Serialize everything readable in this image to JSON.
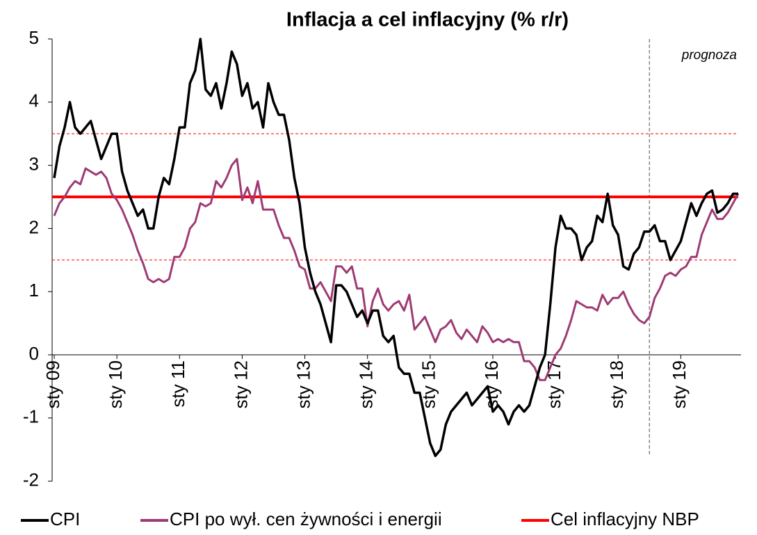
{
  "chart_data": {
    "type": "line",
    "title": "Inflacja a cel inflacyjny (% r/r)",
    "categories": [
      "sty 09",
      null,
      null,
      null,
      null,
      null,
      null,
      null,
      null,
      null,
      null,
      null,
      "sty 10",
      null,
      null,
      null,
      null,
      null,
      null,
      null,
      null,
      null,
      null,
      null,
      "sty 11",
      null,
      null,
      null,
      null,
      null,
      null,
      null,
      null,
      null,
      null,
      null,
      "sty 12",
      null,
      null,
      null,
      null,
      null,
      null,
      null,
      null,
      null,
      null,
      null,
      "sty 13",
      null,
      null,
      null,
      null,
      null,
      null,
      null,
      null,
      null,
      null,
      null,
      "sty 14",
      null,
      null,
      null,
      null,
      null,
      null,
      null,
      null,
      null,
      null,
      null,
      "sty 15",
      null,
      null,
      null,
      null,
      null,
      null,
      null,
      null,
      null,
      null,
      null,
      "sty 16",
      null,
      null,
      null,
      null,
      null,
      null,
      null,
      null,
      null,
      null,
      null,
      "sty 17",
      null,
      null,
      null,
      null,
      null,
      null,
      null,
      null,
      null,
      null,
      null,
      "sty 18",
      null,
      null,
      null,
      null,
      null,
      null,
      null,
      null,
      null,
      null,
      null,
      "sty 19",
      null,
      null,
      null,
      null,
      null,
      null,
      null,
      null,
      null,
      null,
      null
    ],
    "series": [
      {
        "name": "CPI",
        "color": "#000000",
        "values": [
          2.8,
          3.3,
          3.6,
          4.0,
          3.6,
          3.5,
          3.6,
          3.7,
          3.4,
          3.1,
          3.3,
          3.5,
          3.5,
          2.9,
          2.6,
          2.4,
          2.2,
          2.3,
          2.0,
          2.0,
          2.5,
          2.8,
          2.7,
          3.1,
          3.6,
          3.6,
          4.3,
          4.5,
          5.0,
          4.2,
          4.1,
          4.3,
          3.9,
          4.3,
          4.8,
          4.6,
          4.1,
          4.3,
          3.9,
          4.0,
          3.6,
          4.3,
          4.0,
          3.8,
          3.8,
          3.4,
          2.8,
          2.4,
          1.7,
          1.3,
          1.0,
          0.8,
          0.5,
          0.2,
          1.1,
          1.1,
          1.0,
          0.8,
          0.6,
          0.7,
          0.5,
          0.7,
          0.7,
          0.3,
          0.2,
          0.3,
          -0.2,
          -0.3,
          -0.3,
          -0.6,
          -0.6,
          -1.0,
          -1.4,
          -1.6,
          -1.5,
          -1.1,
          -0.9,
          -0.8,
          -0.7,
          -0.6,
          -0.8,
          -0.7,
          -0.6,
          -0.5,
          -0.9,
          -0.8,
          -0.9,
          -1.1,
          -0.9,
          -0.8,
          -0.9,
          -0.8,
          -0.5,
          -0.2,
          0.0,
          0.8,
          1.7,
          2.2,
          2.0,
          2.0,
          1.9,
          1.5,
          1.7,
          1.8,
          2.2,
          2.1,
          2.55,
          2.05,
          1.9,
          1.4,
          1.35,
          1.6,
          1.7,
          1.95,
          1.95,
          2.05,
          1.8,
          1.8,
          1.5,
          1.65,
          1.8,
          2.1,
          2.4,
          2.2,
          2.4,
          2.55,
          2.6,
          2.25,
          2.3,
          2.4,
          2.55,
          2.55
        ]
      },
      {
        "name": "CPI po wył. cen żywności i energii",
        "color": "#9e3a73",
        "values": [
          2.2,
          2.4,
          2.5,
          2.65,
          2.75,
          2.7,
          2.95,
          2.9,
          2.85,
          2.9,
          2.8,
          2.55,
          2.45,
          2.3,
          2.1,
          1.9,
          1.65,
          1.45,
          1.2,
          1.15,
          1.2,
          1.15,
          1.2,
          1.55,
          1.55,
          1.7,
          2.0,
          2.1,
          2.4,
          2.35,
          2.4,
          2.75,
          2.65,
          2.8,
          3.0,
          3.1,
          2.45,
          2.65,
          2.4,
          2.75,
          2.3,
          2.3,
          2.3,
          2.05,
          1.85,
          1.85,
          1.65,
          1.4,
          1.35,
          1.05,
          1.05,
          1.15,
          1.0,
          0.85,
          1.4,
          1.4,
          1.3,
          1.4,
          1.05,
          1.05,
          0.45,
          0.85,
          1.05,
          0.8,
          0.7,
          0.8,
          0.85,
          0.7,
          0.95,
          0.4,
          0.5,
          0.6,
          0.4,
          0.2,
          0.4,
          0.45,
          0.55,
          0.35,
          0.25,
          0.4,
          0.3,
          0.2,
          0.45,
          0.35,
          0.2,
          0.25,
          0.2,
          0.25,
          0.2,
          0.2,
          -0.1,
          -0.1,
          -0.2,
          -0.4,
          -0.4,
          -0.2,
          0.0,
          0.1,
          0.3,
          0.55,
          0.85,
          0.8,
          0.75,
          0.75,
          0.7,
          0.95,
          0.8,
          0.9,
          0.9,
          1.0,
          0.8,
          0.65,
          0.55,
          0.5,
          0.6,
          0.9,
          1.05,
          1.25,
          1.3,
          1.25,
          1.35,
          1.4,
          1.55,
          1.55,
          1.9,
          2.1,
          2.3,
          2.15,
          2.15,
          2.25,
          2.4,
          2.55
        ]
      }
    ],
    "target": {
      "name": "Cel inflacyjny NBP",
      "color": "#ff0000",
      "value": 2.5
    },
    "tolerance_band": [
      1.5,
      3.5
    ],
    "forecast": {
      "label": "prognoza",
      "start_index": 114
    },
    "ylim": [
      -2,
      5
    ],
    "yticks": [
      -2,
      -1,
      0,
      1,
      2,
      3,
      4,
      5
    ],
    "legend": "bottom"
  }
}
